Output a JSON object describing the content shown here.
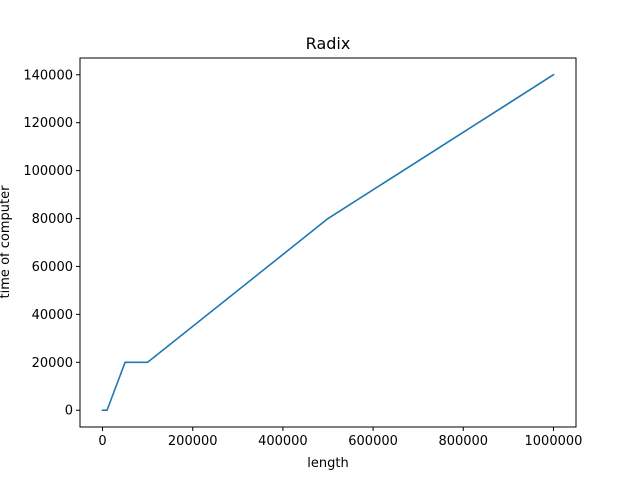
{
  "chart_data": {
    "type": "line",
    "title": "Radix",
    "xlabel": "length",
    "ylabel": "time of computer",
    "xlim": [
      -50000,
      1050000
    ],
    "ylim": [
      -7000,
      147000
    ],
    "xticks": [
      0,
      200000,
      400000,
      600000,
      800000,
      1000000
    ],
    "xtick_labels": [
      "0",
      "200000",
      "400000",
      "600000",
      "800000",
      "1000000"
    ],
    "yticks": [
      0,
      20000,
      40000,
      60000,
      80000,
      100000,
      120000,
      140000
    ],
    "ytick_labels": [
      "0",
      "20000",
      "40000",
      "60000",
      "80000",
      "100000",
      "120000",
      "140000"
    ],
    "grid": false,
    "series": [
      {
        "color": "#1f77b4",
        "x": [
          0,
          10000,
          50000,
          100000,
          500000,
          1000000
        ],
        "y": [
          0,
          0,
          20000,
          20000,
          80000,
          140000
        ]
      }
    ]
  }
}
